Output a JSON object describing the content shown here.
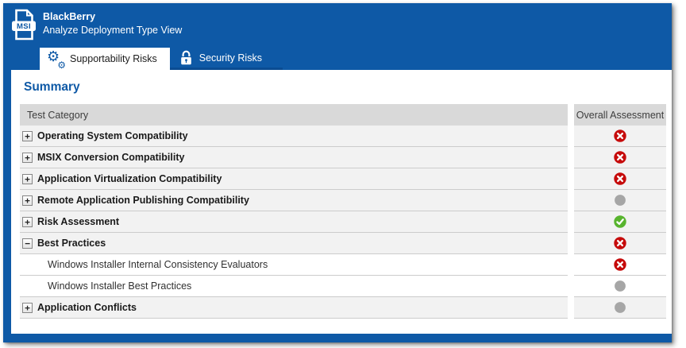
{
  "header": {
    "title": "BlackBerry",
    "subtitle": "Analyze Deployment Type View",
    "file_icon_label": "MSI"
  },
  "tabs": [
    {
      "label": "Supportability Risks",
      "icon": "gears-icon",
      "active": true
    },
    {
      "label": "Security Risks",
      "icon": "lock-icon",
      "active": false
    }
  ],
  "summary": {
    "heading": "Summary",
    "columns": [
      "Test Category",
      "Overall Assessment"
    ],
    "rows": [
      {
        "label": "Operating System Compatibility",
        "child": false,
        "expandable": true,
        "expanded": false,
        "status": "error"
      },
      {
        "label": "MSIX Conversion Compatibility",
        "child": false,
        "expandable": true,
        "expanded": false,
        "status": "error"
      },
      {
        "label": "Application Virtualization Compatibility",
        "child": false,
        "expandable": true,
        "expanded": false,
        "status": "error"
      },
      {
        "label": "Remote Application Publishing Compatibility",
        "child": false,
        "expandable": true,
        "expanded": false,
        "status": "not_run"
      },
      {
        "label": "Risk Assessment",
        "child": false,
        "expandable": true,
        "expanded": false,
        "status": "pass"
      },
      {
        "label": "Best Practices",
        "child": false,
        "expandable": true,
        "expanded": true,
        "status": "error"
      },
      {
        "label": "Windows Installer Internal Consistency Evaluators",
        "child": true,
        "expandable": false,
        "expanded": null,
        "status": "error"
      },
      {
        "label": "Windows Installer Best Practices",
        "child": true,
        "expandable": false,
        "expanded": null,
        "status": "not_run"
      },
      {
        "label": "Application Conflicts",
        "child": false,
        "expandable": true,
        "expanded": false,
        "status": "not_run"
      }
    ]
  },
  "colors": {
    "header_blue": "#0e59a6",
    "tab_underline_blue": "#0a4c92",
    "heading_blue": "#0e59a6",
    "table_header_bg": "#d9d9d9",
    "row_bg": "#f2f2f2",
    "status_error": "#c60b0b",
    "status_pass": "#58b42e",
    "status_not_run": "#a6a6a6"
  }
}
